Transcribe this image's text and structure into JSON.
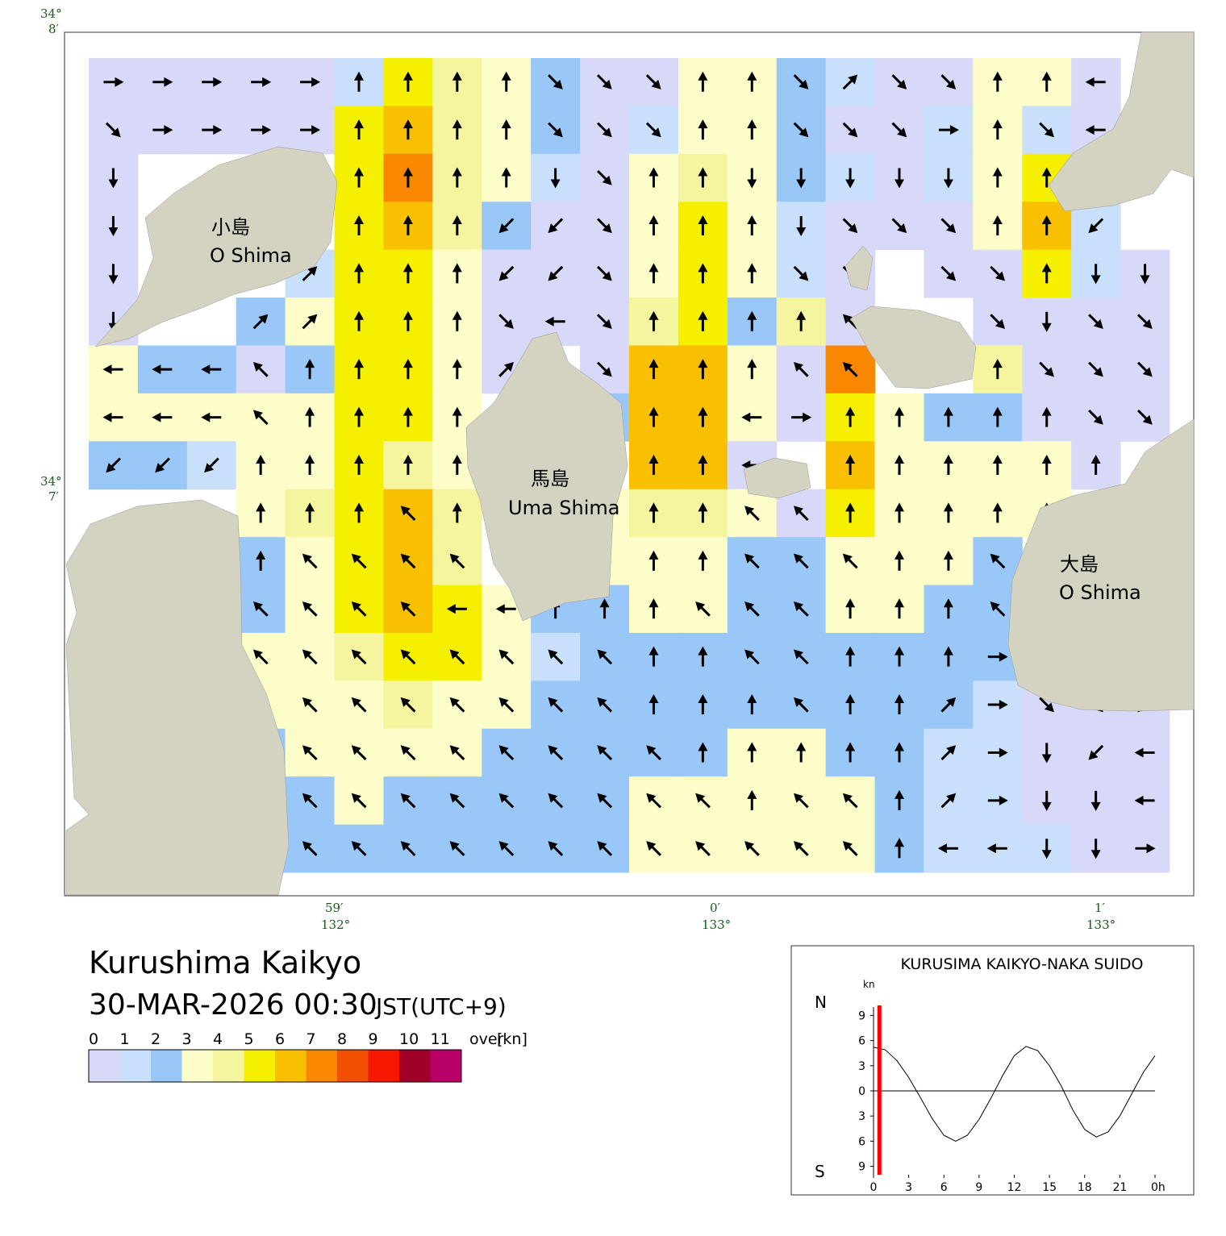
{
  "map": {
    "coords": {
      "lat_top": [
        "34°",
        "8′"
      ],
      "lat_mid": [
        "34°",
        "7′"
      ],
      "lon_1": [
        "59′",
        "132°"
      ],
      "lon_2": [
        "0′",
        "133°"
      ],
      "lon_3": [
        "1′",
        "133°"
      ]
    },
    "islands": [
      {
        "name": "小島",
        "roman": "O Shima"
      },
      {
        "name": "馬島",
        "roman": "Uma Shima"
      },
      {
        "name": "大島",
        "roman": "O Shima"
      }
    ],
    "speed": [
      [
        0,
        0,
        0,
        0,
        0,
        1,
        5,
        4,
        3,
        2,
        0,
        0,
        3,
        3,
        2,
        1,
        0,
        0,
        3,
        3,
        0,
        null
      ],
      [
        0,
        0,
        0,
        0,
        0,
        5,
        6,
        4,
        3,
        2,
        0,
        1,
        3,
        3,
        2,
        0,
        0,
        1,
        3,
        1,
        0,
        null
      ],
      [
        0,
        null,
        null,
        null,
        null,
        5,
        7,
        4,
        3,
        1,
        0,
        3,
        4,
        3,
        2,
        1,
        0,
        1,
        3,
        5,
        null,
        null
      ],
      [
        0,
        null,
        null,
        null,
        null,
        5,
        6,
        4,
        2,
        0,
        0,
        3,
        5,
        3,
        1,
        0,
        0,
        0,
        3,
        6,
        1,
        null
      ],
      [
        0,
        null,
        null,
        null,
        1,
        5,
        5,
        3,
        0,
        0,
        0,
        3,
        5,
        3,
        1,
        0,
        null,
        0,
        0,
        5,
        1,
        0
      ],
      [
        0,
        null,
        null,
        2,
        3,
        5,
        5,
        3,
        0,
        0,
        0,
        4,
        5,
        2,
        4,
        0,
        null,
        null,
        0,
        0,
        0,
        0
      ],
      [
        3,
        2,
        2,
        0,
        2,
        5,
        5,
        3,
        0,
        null,
        0,
        6,
        6,
        3,
        0,
        7,
        null,
        null,
        4,
        0,
        0,
        0
      ],
      [
        3,
        3,
        3,
        3,
        3,
        5,
        5,
        3,
        null,
        null,
        2,
        6,
        6,
        3,
        0,
        5,
        3,
        2,
        2,
        0,
        0,
        0
      ],
      [
        2,
        2,
        1,
        3,
        3,
        5,
        4,
        3,
        null,
        null,
        null,
        6,
        6,
        0,
        null,
        6,
        3,
        3,
        3,
        3,
        0,
        null
      ],
      [
        null,
        null,
        null,
        3,
        4,
        5,
        6,
        4,
        null,
        null,
        3,
        4,
        4,
        3,
        0,
        5,
        3,
        3,
        3,
        3,
        null,
        null
      ],
      [
        null,
        null,
        null,
        2,
        3,
        5,
        6,
        4,
        null,
        null,
        3,
        3,
        3,
        2,
        2,
        3,
        3,
        3,
        2,
        null,
        null,
        null
      ],
      [
        null,
        null,
        null,
        2,
        3,
        5,
        6,
        5,
        3,
        2,
        2,
        3,
        3,
        2,
        2,
        3,
        3,
        2,
        2,
        null,
        null,
        null
      ],
      [
        null,
        null,
        null,
        3,
        3,
        4,
        5,
        5,
        3,
        1,
        2,
        2,
        2,
        2,
        2,
        2,
        2,
        2,
        2,
        null,
        null,
        null
      ],
      [
        null,
        null,
        null,
        3,
        3,
        3,
        4,
        3,
        3,
        2,
        2,
        2,
        2,
        2,
        2,
        2,
        2,
        2,
        1,
        0,
        0,
        0
      ],
      [
        null,
        null,
        null,
        2,
        3,
        3,
        3,
        3,
        2,
        2,
        2,
        2,
        2,
        3,
        3,
        2,
        2,
        1,
        1,
        0,
        0,
        0
      ],
      [
        null,
        null,
        null,
        2,
        2,
        3,
        2,
        2,
        2,
        2,
        2,
        3,
        3,
        3,
        3,
        3,
        2,
        1,
        1,
        0,
        0,
        0
      ],
      [
        null,
        null,
        null,
        2,
        2,
        2,
        2,
        2,
        2,
        2,
        2,
        3,
        3,
        3,
        3,
        3,
        2,
        1,
        1,
        1,
        0,
        0
      ]
    ],
    "direction": [
      [
        90,
        90,
        90,
        90,
        90,
        0,
        0,
        0,
        0,
        135,
        135,
        135,
        0,
        0,
        135,
        45,
        135,
        135,
        0,
        0,
        270,
        null
      ],
      [
        135,
        90,
        90,
        90,
        90,
        0,
        0,
        0,
        0,
        135,
        135,
        135,
        0,
        0,
        135,
        135,
        135,
        90,
        0,
        135,
        270,
        null
      ],
      [
        180,
        null,
        null,
        null,
        null,
        0,
        0,
        0,
        0,
        180,
        135,
        0,
        0,
        180,
        180,
        180,
        180,
        180,
        0,
        0,
        null,
        null
      ],
      [
        180,
        null,
        null,
        null,
        null,
        0,
        0,
        0,
        225,
        225,
        135,
        0,
        0,
        0,
        180,
        135,
        135,
        135,
        0,
        0,
        225,
        null
      ],
      [
        180,
        null,
        null,
        null,
        45,
        0,
        0,
        0,
        225,
        225,
        135,
        0,
        0,
        0,
        135,
        135,
        null,
        135,
        135,
        0,
        180,
        180
      ],
      [
        180,
        null,
        null,
        45,
        45,
        0,
        0,
        0,
        135,
        270,
        135,
        0,
        0,
        0,
        0,
        315,
        null,
        null,
        135,
        180,
        135,
        135
      ],
      [
        270,
        270,
        270,
        315,
        0,
        0,
        0,
        0,
        45,
        null,
        135,
        0,
        0,
        0,
        315,
        315,
        null,
        null,
        0,
        135,
        135,
        135
      ],
      [
        270,
        270,
        270,
        315,
        0,
        0,
        0,
        0,
        null,
        null,
        315,
        0,
        0,
        270,
        90,
        0,
        0,
        0,
        0,
        0,
        135,
        135
      ],
      [
        225,
        225,
        225,
        0,
        0,
        0,
        0,
        0,
        null,
        null,
        null,
        0,
        0,
        270,
        null,
        0,
        0,
        0,
        0,
        0,
        0,
        null
      ],
      [
        null,
        null,
        null,
        0,
        0,
        0,
        315,
        0,
        null,
        null,
        0,
        0,
        0,
        315,
        315,
        0,
        0,
        0,
        0,
        0,
        null,
        null
      ],
      [
        null,
        null,
        null,
        0,
        315,
        315,
        315,
        315,
        null,
        null,
        0,
        0,
        0,
        315,
        315,
        315,
        0,
        0,
        315,
        null,
        null,
        null
      ],
      [
        null,
        null,
        null,
        315,
        315,
        315,
        315,
        270,
        270,
        0,
        0,
        0,
        315,
        315,
        315,
        0,
        0,
        0,
        315,
        null,
        null,
        null
      ],
      [
        null,
        null,
        null,
        315,
        315,
        315,
        315,
        315,
        315,
        315,
        315,
        0,
        0,
        315,
        315,
        0,
        0,
        0,
        90,
        null,
        null,
        null
      ],
      [
        null,
        null,
        null,
        0,
        315,
        315,
        315,
        315,
        315,
        315,
        315,
        0,
        0,
        0,
        315,
        0,
        0,
        45,
        90,
        135,
        135,
        225
      ],
      [
        null,
        null,
        null,
        0,
        315,
        315,
        315,
        315,
        315,
        315,
        315,
        315,
        0,
        0,
        0,
        0,
        0,
        45,
        90,
        180,
        225,
        270
      ],
      [
        null,
        null,
        null,
        0,
        315,
        315,
        315,
        315,
        315,
        315,
        315,
        315,
        315,
        0,
        315,
        315,
        0,
        45,
        90,
        180,
        180,
        270
      ],
      [
        null,
        null,
        null,
        0,
        315,
        315,
        315,
        315,
        315,
        315,
        315,
        315,
        315,
        315,
        315,
        315,
        0,
        270,
        270,
        180,
        180,
        90
      ]
    ]
  },
  "title": "Kurushima Kaikyo",
  "datetime": "30-MAR-2026 00:30",
  "timezone": "JST(UTC+9)",
  "legend": {
    "labels": [
      "0",
      "1",
      "2",
      "3",
      "4",
      "5",
      "6",
      "7",
      "8",
      "9",
      "10",
      "11",
      "over"
    ],
    "unit": "[kn]",
    "colors": [
      "#d8d8f8",
      "#c8e0fb",
      "#99c8f8",
      "#fcfdc8",
      "#f5f5a0",
      "#f5f000",
      "#f8c000",
      "#f88800",
      "#f05000",
      "#f81800",
      "#a00028",
      "#b80068"
    ]
  },
  "chart_data": {
    "type": "line",
    "title": "KURUSIMA KAIKYO-NAKA SUIDO",
    "y_unit": "kn",
    "north": "N",
    "south": "S",
    "x": [
      0,
      1,
      2,
      3,
      4,
      5,
      6,
      7,
      8,
      9,
      10,
      11,
      12,
      13,
      14,
      15,
      16,
      17,
      18,
      19,
      20,
      21,
      22,
      23,
      24
    ],
    "series": [
      {
        "color": "#000000",
        "values": [
          5.2,
          4.9,
          3.6,
          1.6,
          -0.8,
          -3.3,
          -5.3,
          -6.0,
          -5.3,
          -3.4,
          -0.9,
          1.8,
          4.2,
          5.3,
          4.8,
          3.0,
          0.6,
          -2.3,
          -4.6,
          -5.5,
          -4.9,
          -3.0,
          -0.4,
          2.2,
          4.2
        ]
      }
    ],
    "now": 0.5,
    "now_color": "#ff0000",
    "xlim": [
      0,
      24
    ],
    "ylim": [
      -10,
      10
    ],
    "xticks": [
      0,
      3,
      6,
      9,
      12,
      15,
      18,
      21,
      {
        "value": 24,
        "label": "0h"
      }
    ],
    "yticks": [
      9,
      6,
      3,
      0,
      {
        "value": -3,
        "label": "3"
      },
      {
        "value": -6,
        "label": "6"
      },
      {
        "value": -9,
        "label": "9"
      }
    ]
  }
}
